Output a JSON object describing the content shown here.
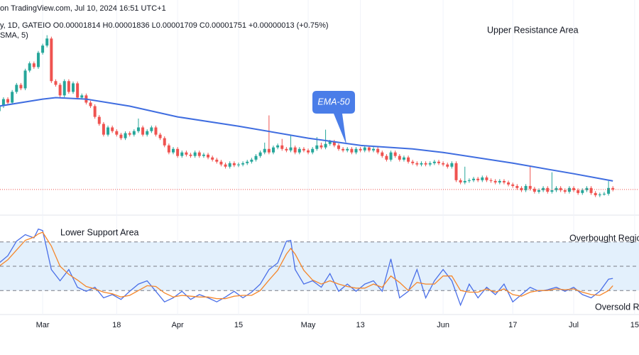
{
  "header": {
    "line1": "on TradingView.com, Jul 10, 2024 16:51 UTC+1",
    "line2": "y, 1D, GATEIO  O0.00001814  H0.00001836  L0.00001709  C0.00001751  +0.00000013 (+0.75%)",
    "line3": "SMA, 5)"
  },
  "chart_data": [
    {
      "type": "candlestick",
      "annotations": [
        "Upper Resistance Area"
      ],
      "xlim": [
        0.2,
        147
      ],
      "xticks": [
        {
          "value": 10,
          "label": "Mar"
        },
        {
          "value": 27,
          "label": "18"
        },
        {
          "value": 41,
          "label": "Apr"
        },
        {
          "value": 55,
          "label": "15"
        },
        {
          "value": 71,
          "label": "May"
        },
        {
          "value": 83,
          "label": "13"
        },
        {
          "value": 102,
          "label": "Jun"
        },
        {
          "value": 118,
          "label": "17"
        },
        {
          "value": 132,
          "label": "Jul"
        },
        {
          "value": 146,
          "label": "15"
        }
      ],
      "ylim": [
        0,
        115
      ],
      "up_color": "#26a69a",
      "down_color": "#ef5350",
      "candles": [
        [
          55,
          58.7,
          54,
          57.7
        ],
        [
          57.7,
          62.5,
          56.7,
          61.5
        ],
        [
          61.5,
          62.5,
          58.6,
          59.6
        ],
        [
          59.6,
          66.4,
          58.6,
          65.4
        ],
        [
          65.4,
          70.2,
          64.4,
          69.2
        ],
        [
          69.2,
          70.2,
          66.3,
          67.3
        ],
        [
          67.3,
          77.9,
          66.3,
          76.9
        ],
        [
          76.9,
          81.8,
          75.9,
          80.8
        ],
        [
          80.8,
          81.8,
          77.8,
          78.8
        ],
        [
          78.8,
          87.5,
          77.8,
          86.5
        ],
        [
          86.5,
          91.4,
          85.5,
          90.4
        ],
        [
          90.4,
          96,
          89.4,
          94.2
        ],
        [
          94.2,
          95.2,
          70.2,
          71.2
        ],
        [
          71.2,
          72.2,
          68.2,
          69.2
        ],
        [
          69.2,
          70.2,
          62.5,
          63.5
        ],
        [
          63.5,
          72.2,
          62.5,
          71.2
        ],
        [
          71.2,
          72.2,
          64.4,
          65.4
        ],
        [
          65.4,
          71,
          64.4,
          70
        ],
        [
          70,
          71,
          61.3,
          62.3
        ],
        [
          62.3,
          64.5,
          61.3,
          63.5
        ],
        [
          63.5,
          64.5,
          58.6,
          59.6
        ],
        [
          59.6,
          60.6,
          56.7,
          57.7
        ],
        [
          57.7,
          58.7,
          50.9,
          51.9
        ],
        [
          51.9,
          52.9,
          47.1,
          48.1
        ],
        [
          48.1,
          49.1,
          41.3,
          42.3
        ],
        [
          42.3,
          47.2,
          41.3,
          46.2
        ],
        [
          46.2,
          47.2,
          43.2,
          44.2
        ],
        [
          44.2,
          45.2,
          41.3,
          42.3
        ],
        [
          42.3,
          43.3,
          39.4,
          40.4
        ],
        [
          40.4,
          44.1,
          39.4,
          43.1
        ],
        [
          43.1,
          44.1,
          41.3,
          42.3
        ],
        [
          42.3,
          45.2,
          41.3,
          44.2
        ],
        [
          44.2,
          51,
          43.2,
          46.2
        ],
        [
          46.2,
          47.2,
          41.3,
          42.3
        ],
        [
          42.3,
          45.2,
          41.3,
          44.2
        ],
        [
          44.2,
          47.2,
          43.2,
          46.2
        ],
        [
          46.2,
          47.2,
          41.3,
          42.3
        ],
        [
          42.3,
          43.3,
          39.4,
          40.4
        ],
        [
          40.4,
          41.4,
          35.5,
          36.5
        ],
        [
          36.5,
          37.5,
          31.7,
          32.7
        ],
        [
          32.7,
          35.6,
          31.7,
          34.6
        ],
        [
          34.6,
          35.6,
          29.8,
          30.8
        ],
        [
          30.8,
          33.7,
          29.8,
          32.7
        ],
        [
          32.7,
          33.7,
          30.5,
          31.5
        ],
        [
          31.5,
          32.5,
          29.8,
          30.8
        ],
        [
          30.8,
          33.7,
          29.8,
          32.7
        ],
        [
          32.7,
          33.7,
          29.8,
          30.8
        ],
        [
          30.8,
          32.5,
          29.8,
          31.5
        ],
        [
          31.5,
          32.5,
          29,
          30
        ],
        [
          30,
          31,
          27.8,
          28.8
        ],
        [
          28.8,
          29.8,
          26.7,
          27.7
        ],
        [
          27.7,
          28.7,
          25.2,
          26.2
        ],
        [
          26.2,
          27.2,
          24,
          25
        ],
        [
          25,
          27.9,
          24,
          26.9
        ],
        [
          26.9,
          27.9,
          24.8,
          25.8
        ],
        [
          25.8,
          27.2,
          24.8,
          26.2
        ],
        [
          26.2,
          27.9,
          25.2,
          26.9
        ],
        [
          26.9,
          28.7,
          25.9,
          27.7
        ],
        [
          27.7,
          29.8,
          26.7,
          28.8
        ],
        [
          28.8,
          31.8,
          27.8,
          30.8
        ],
        [
          30.8,
          33.7,
          29.8,
          32.7
        ],
        [
          32.7,
          38,
          31.7,
          34.6
        ],
        [
          34.6,
          52.7,
          31.7,
          32.7
        ],
        [
          32.7,
          36.4,
          31.7,
          35.4
        ],
        [
          35.4,
          37.5,
          34.4,
          36.5
        ],
        [
          36.5,
          40,
          33.6,
          34.6
        ],
        [
          34.6,
          35.6,
          32.8,
          33.8
        ],
        [
          33.8,
          42,
          32.8,
          35.4
        ],
        [
          35.4,
          36.4,
          31.7,
          32.7
        ],
        [
          32.7,
          35.6,
          31.7,
          34.6
        ],
        [
          34.6,
          35.6,
          32.8,
          33.8
        ],
        [
          33.8,
          34.8,
          31.7,
          32.7
        ],
        [
          32.7,
          35.6,
          31.7,
          34.6
        ],
        [
          34.6,
          41,
          33.6,
          36.5
        ],
        [
          36.5,
          38,
          34.4,
          35.4
        ],
        [
          35.4,
          45,
          34.4,
          37.3
        ],
        [
          37.3,
          39.5,
          36.3,
          38.5
        ],
        [
          38.5,
          39.5,
          35.5,
          36.5
        ],
        [
          36.5,
          37.5,
          33.6,
          34.6
        ],
        [
          34.6,
          35.6,
          32.8,
          33.8
        ],
        [
          33.8,
          35.6,
          32.8,
          34.6
        ],
        [
          34.6,
          35.6,
          31.7,
          32.7
        ],
        [
          32.7,
          35.6,
          31.7,
          34.6
        ],
        [
          34.6,
          35.6,
          32.8,
          33.8
        ],
        [
          33.8,
          36.4,
          32.8,
          35.4
        ],
        [
          35.4,
          36.4,
          32.8,
          33.8
        ],
        [
          33.8,
          35.6,
          32.8,
          34.6
        ],
        [
          34.6,
          35.6,
          31.7,
          32.7
        ],
        [
          32.7,
          33.7,
          29.8,
          30.8
        ],
        [
          30.8,
          31.8,
          27.8,
          28.8
        ],
        [
          28.8,
          33.7,
          27.8,
          32.7
        ],
        [
          32.7,
          33.7,
          29.8,
          30.8
        ],
        [
          30.8,
          31.8,
          27.8,
          28.8
        ],
        [
          28.8,
          31,
          27.8,
          30
        ],
        [
          30,
          31,
          26.7,
          27.7
        ],
        [
          27.7,
          28.7,
          25.9,
          26.9
        ],
        [
          26.9,
          27.9,
          25.2,
          26.2
        ],
        [
          26.2,
          27.9,
          25.2,
          26.9
        ],
        [
          26.9,
          27.9,
          25.2,
          26.2
        ],
        [
          26.2,
          27.9,
          25.2,
          26.9
        ],
        [
          26.9,
          28.7,
          25.9,
          27.7
        ],
        [
          27.7,
          28.7,
          25.9,
          26.9
        ],
        [
          26.9,
          27.9,
          25.2,
          26.2
        ],
        [
          26.2,
          27.2,
          24,
          25
        ],
        [
          25,
          27.9,
          24,
          26.9
        ],
        [
          26.9,
          27.9,
          16.7,
          17.7
        ],
        [
          17.7,
          18.7,
          15.5,
          16.5
        ],
        [
          16.5,
          25,
          15.5,
          17.3
        ],
        [
          17.3,
          18.7,
          16.3,
          17.7
        ],
        [
          17.7,
          19.5,
          16.7,
          18.5
        ],
        [
          18.5,
          19.5,
          16.7,
          17.7
        ],
        [
          17.7,
          20.2,
          16.7,
          19.2
        ],
        [
          19.2,
          20.2,
          16.7,
          17.7
        ],
        [
          17.7,
          18.7,
          16.3,
          17.3
        ],
        [
          17.3,
          18.3,
          15.5,
          16.5
        ],
        [
          16.5,
          18.3,
          15.5,
          17.3
        ],
        [
          17.3,
          18.3,
          15.5,
          16.5
        ],
        [
          16.5,
          17.5,
          14.4,
          15.4
        ],
        [
          15.4,
          16.4,
          13.6,
          14.6
        ],
        [
          14.6,
          15.6,
          12.5,
          13.5
        ],
        [
          13.5,
          14.5,
          11.3,
          12.3
        ],
        [
          12.3,
          15.6,
          11.3,
          14.6
        ],
        [
          14.6,
          25,
          12.1,
          13.1
        ],
        [
          13.1,
          14.1,
          10.5,
          11.5
        ],
        [
          11.5,
          13.3,
          10.5,
          12.3
        ],
        [
          12.3,
          14.5,
          11.3,
          13.5
        ],
        [
          13.5,
          14.5,
          10.5,
          11.5
        ],
        [
          11.5,
          22,
          10.5,
          12.3
        ],
        [
          12.3,
          14.5,
          11.3,
          13.5
        ],
        [
          13.5,
          14.5,
          11.3,
          12.3
        ],
        [
          12.3,
          13.3,
          10.5,
          11.5
        ],
        [
          11.5,
          14.5,
          10.5,
          13.5
        ],
        [
          13.5,
          14.5,
          11.3,
          12.3
        ],
        [
          12.3,
          13.3,
          9.8,
          10.8
        ],
        [
          10.8,
          13.3,
          9.8,
          12.3
        ],
        [
          12.3,
          14.5,
          11.3,
          13.5
        ],
        [
          13.5,
          14.5,
          9.8,
          10.8
        ],
        [
          10.8,
          11.8,
          8.6,
          9.6
        ],
        [
          9.6,
          11,
          8.6,
          10
        ],
        [
          10,
          11.4,
          9.4,
          10.4
        ],
        [
          10.4,
          17.3,
          9.4,
          13.5
        ],
        [
          13.5,
          14.5,
          11.7,
          12.7
        ]
      ],
      "series": [
        {
          "name": "EMA-50",
          "color": "#3f6de0",
          "x": [
            0,
            10,
            13,
            20,
            30,
            41,
            55,
            71,
            83,
            95,
            102,
            118,
            132,
            141
          ],
          "values": [
            57.7,
            61.5,
            62.3,
            61.5,
            57.7,
            51.9,
            46.9,
            40.4,
            36.5,
            34.6,
            32.7,
            26.9,
            21.2,
            17.3
          ]
        }
      ],
      "last_price_color": "#ef5350"
    },
    {
      "type": "line",
      "annotations": [
        "Lower Support Area",
        "Overbought Regio",
        "Oversold Re"
      ],
      "ylim": [
        0,
        100
      ],
      "levels": [
        80,
        50,
        20
      ],
      "band_color": "#e3f0fc",
      "series": [
        {
          "color": "#4a6fe8",
          "x": [
            0,
            2,
            4,
            6,
            8,
            9,
            10,
            12,
            14,
            16,
            18,
            20,
            22,
            24,
            26,
            28,
            30,
            32,
            34,
            36,
            38,
            40,
            42,
            44,
            46,
            48,
            50,
            52,
            54,
            56,
            58,
            60,
            62,
            64,
            66,
            67,
            68,
            70,
            72,
            74,
            76,
            78,
            80,
            82,
            84,
            86,
            88,
            90,
            92,
            94,
            96,
            98,
            100,
            102,
            104,
            106,
            108,
            110,
            112,
            114,
            116,
            118,
            120,
            122,
            124,
            126,
            128,
            130,
            132,
            134,
            136,
            138,
            140,
            141
          ],
          "values": [
            54,
            63,
            81,
            89,
            85,
            96,
            94,
            46,
            32,
            46,
            24,
            19,
            24,
            11,
            15,
            9,
            19,
            28,
            32,
            19,
            6,
            11,
            19,
            9,
            15,
            11,
            6,
            12,
            19,
            11,
            18,
            28,
            46,
            54,
            81,
            82,
            46,
            28,
            32,
            24,
            41,
            19,
            28,
            19,
            28,
            32,
            19,
            59,
            11,
            19,
            46,
            11,
            32,
            46,
            32,
            2,
            28,
            11,
            24,
            15,
            28,
            6,
            15,
            24,
            19,
            21,
            24,
            19,
            24,
            15,
            11,
            19,
            34,
            35
          ]
        },
        {
          "color": "#f5862a",
          "x": [
            0,
            2,
            4,
            6,
            8,
            9,
            10,
            12,
            14,
            16,
            18,
            20,
            22,
            24,
            26,
            28,
            30,
            32,
            34,
            36,
            38,
            40,
            42,
            44,
            46,
            48,
            50,
            52,
            54,
            56,
            58,
            60,
            62,
            64,
            66,
            67,
            68,
            70,
            72,
            74,
            76,
            78,
            80,
            82,
            84,
            86,
            88,
            90,
            92,
            94,
            96,
            98,
            100,
            102,
            104,
            106,
            108,
            110,
            112,
            114,
            116,
            118,
            120,
            122,
            124,
            126,
            128,
            130,
            132,
            134,
            136,
            138,
            140,
            141
          ],
          "values": [
            50,
            58,
            70,
            82,
            86,
            90,
            92,
            75,
            50,
            40,
            33,
            25,
            22,
            18,
            16,
            12,
            14,
            20,
            26,
            25,
            17,
            12,
            14,
            13,
            12,
            12,
            10,
            10,
            13,
            14,
            14,
            20,
            33,
            45,
            65,
            72,
            65,
            45,
            33,
            28,
            32,
            28,
            25,
            23,
            23,
            28,
            24,
            38,
            30,
            20,
            30,
            28,
            28,
            38,
            38,
            20,
            18,
            18,
            22,
            18,
            22,
            15,
            13,
            18,
            20,
            20,
            22,
            21,
            22,
            18,
            15,
            14,
            20,
            26
          ]
        }
      ]
    }
  ]
}
